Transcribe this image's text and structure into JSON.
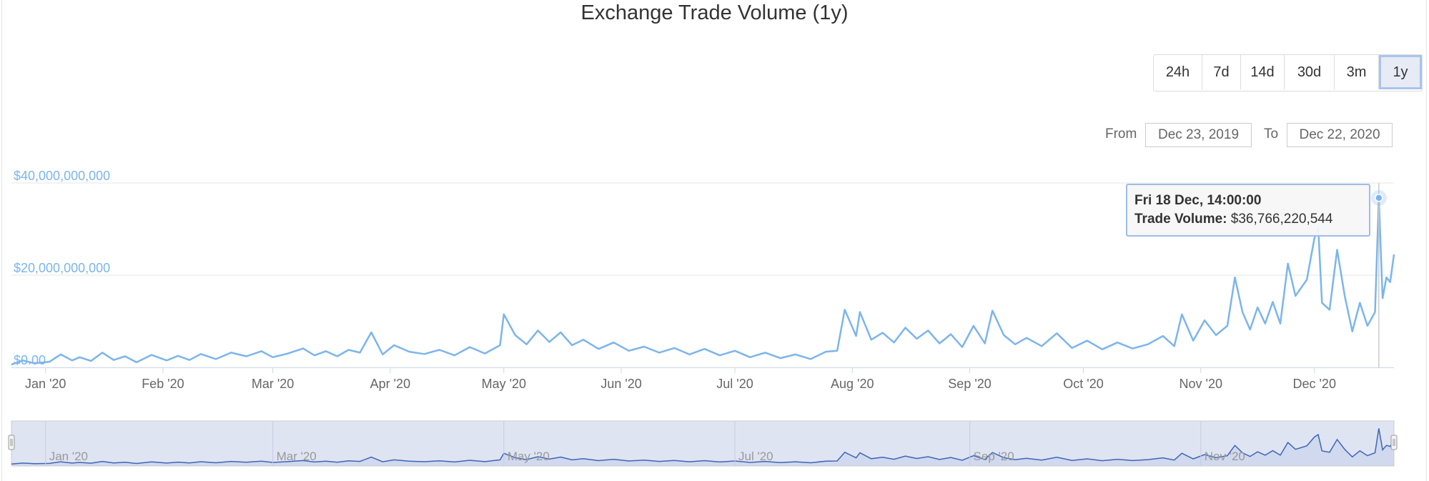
{
  "chart_data": {
    "type": "line",
    "title": "Exchange Trade Volume (1y)",
    "series": [
      {
        "values": []
      }
    ],
    "x_start": "2019-12-23",
    "x_end": "2020-12-22",
    "x_ticks": [
      "Jan '20",
      "Feb '20",
      "Mar '20",
      "Apr '20",
      "May '20",
      "Jun '20",
      "Jul '20",
      "Aug '20",
      "Sep '20",
      "Oct '20",
      "Nov '20",
      "Dec '20"
    ],
    "y_ticks": [
      "$0.00",
      "$20,000,000,000",
      "$40,000,000,000"
    ],
    "ylim": [
      0,
      40000000000
    ],
    "navigator_labels": [
      "Jan '20",
      "Mar '20",
      "May '20",
      "Jul '20",
      "Sep '20",
      "Nov '20"
    ],
    "points": [
      [
        "2019-12-23",
        0.6
      ],
      [
        "2019-12-26",
        1.5
      ],
      [
        "2019-12-29",
        0.9
      ],
      [
        "2020-01-02",
        1.2
      ],
      [
        "2020-01-05",
        2.8
      ],
      [
        "2020-01-08",
        1.5
      ],
      [
        "2020-01-10",
        2.2
      ],
      [
        "2020-01-13",
        1.4
      ],
      [
        "2020-01-16",
        3.2
      ],
      [
        "2020-01-19",
        1.6
      ],
      [
        "2020-01-22",
        2.4
      ],
      [
        "2020-01-25",
        1.1
      ],
      [
        "2020-01-29",
        2.7
      ],
      [
        "2020-02-02",
        1.5
      ],
      [
        "2020-02-05",
        2.5
      ],
      [
        "2020-02-08",
        1.6
      ],
      [
        "2020-02-11",
        2.9
      ],
      [
        "2020-02-15",
        1.8
      ],
      [
        "2020-02-19",
        3.2
      ],
      [
        "2020-02-23",
        2.4
      ],
      [
        "2020-02-27",
        3.5
      ],
      [
        "2020-03-01",
        2.2
      ],
      [
        "2020-03-05",
        3.0
      ],
      [
        "2020-03-09",
        4.1
      ],
      [
        "2020-03-12",
        2.6
      ],
      [
        "2020-03-15",
        3.5
      ],
      [
        "2020-03-18",
        2.4
      ],
      [
        "2020-03-21",
        3.8
      ],
      [
        "2020-03-24",
        3.2
      ],
      [
        "2020-03-27",
        7.6
      ],
      [
        "2020-03-30",
        2.8
      ],
      [
        "2020-04-02",
        4.8
      ],
      [
        "2020-04-06",
        3.4
      ],
      [
        "2020-04-10",
        2.9
      ],
      [
        "2020-04-14",
        3.8
      ],
      [
        "2020-04-18",
        2.6
      ],
      [
        "2020-04-22",
        4.4
      ],
      [
        "2020-04-26",
        3.0
      ],
      [
        "2020-04-30",
        4.8
      ],
      [
        "2020-05-01",
        11.5
      ],
      [
        "2020-05-04",
        7.0
      ],
      [
        "2020-05-07",
        5.0
      ],
      [
        "2020-05-10",
        8.0
      ],
      [
        "2020-05-13",
        5.5
      ],
      [
        "2020-05-16",
        7.6
      ],
      [
        "2020-05-19",
        4.8
      ],
      [
        "2020-05-22",
        6.0
      ],
      [
        "2020-05-26",
        4.0
      ],
      [
        "2020-05-30",
        5.4
      ],
      [
        "2020-06-03",
        3.6
      ],
      [
        "2020-06-07",
        4.5
      ],
      [
        "2020-06-11",
        3.2
      ],
      [
        "2020-06-15",
        4.2
      ],
      [
        "2020-06-19",
        2.8
      ],
      [
        "2020-06-23",
        4.0
      ],
      [
        "2020-06-27",
        2.6
      ],
      [
        "2020-07-01",
        3.6
      ],
      [
        "2020-07-05",
        2.2
      ],
      [
        "2020-07-09",
        3.2
      ],
      [
        "2020-07-13",
        2.0
      ],
      [
        "2020-07-17",
        2.8
      ],
      [
        "2020-07-21",
        1.8
      ],
      [
        "2020-07-25",
        3.4
      ],
      [
        "2020-07-28",
        3.6
      ],
      [
        "2020-07-30",
        12.5
      ],
      [
        "2020-08-02",
        6.8
      ],
      [
        "2020-08-03",
        12.0
      ],
      [
        "2020-08-06",
        6.0
      ],
      [
        "2020-08-09",
        7.5
      ],
      [
        "2020-08-12",
        5.4
      ],
      [
        "2020-08-15",
        8.6
      ],
      [
        "2020-08-18",
        6.2
      ],
      [
        "2020-08-21",
        8.0
      ],
      [
        "2020-08-24",
        5.2
      ],
      [
        "2020-08-27",
        7.2
      ],
      [
        "2020-08-30",
        4.4
      ],
      [
        "2020-09-02",
        9.0
      ],
      [
        "2020-09-05",
        5.2
      ],
      [
        "2020-09-07",
        12.3
      ],
      [
        "2020-09-10",
        7.0
      ],
      [
        "2020-09-13",
        5.0
      ],
      [
        "2020-09-16",
        6.4
      ],
      [
        "2020-09-20",
        4.6
      ],
      [
        "2020-09-24",
        7.4
      ],
      [
        "2020-09-28",
        4.2
      ],
      [
        "2020-10-02",
        5.8
      ],
      [
        "2020-10-06",
        3.9
      ],
      [
        "2020-10-10",
        5.4
      ],
      [
        "2020-10-14",
        4.1
      ],
      [
        "2020-10-18",
        5.0
      ],
      [
        "2020-10-22",
        6.8
      ],
      [
        "2020-10-25",
        4.6
      ],
      [
        "2020-10-27",
        11.5
      ],
      [
        "2020-10-30",
        5.8
      ],
      [
        "2020-11-02",
        10.2
      ],
      [
        "2020-11-05",
        7.0
      ],
      [
        "2020-11-08",
        9.0
      ],
      [
        "2020-11-10",
        19.5
      ],
      [
        "2020-11-12",
        12.0
      ],
      [
        "2020-11-14",
        8.2
      ],
      [
        "2020-11-16",
        13.0
      ],
      [
        "2020-11-18",
        9.5
      ],
      [
        "2020-11-20",
        14.2
      ],
      [
        "2020-11-22",
        9.5
      ],
      [
        "2020-11-24",
        22.5
      ],
      [
        "2020-11-26",
        15.5
      ],
      [
        "2020-11-29",
        19.0
      ],
      [
        "2020-12-01",
        28.0
      ],
      [
        "2020-12-02",
        30.5
      ],
      [
        "2020-12-03",
        14.0
      ],
      [
        "2020-12-05",
        12.5
      ],
      [
        "2020-12-07",
        25.5
      ],
      [
        "2020-12-09",
        15.5
      ],
      [
        "2020-12-11",
        7.8
      ],
      [
        "2020-12-13",
        14.0
      ],
      [
        "2020-12-15",
        9.0
      ],
      [
        "2020-12-17",
        12.0
      ],
      [
        "2020-12-18",
        36.766220544
      ],
      [
        "2020-12-19",
        15.0
      ],
      [
        "2020-12-20",
        19.5
      ],
      [
        "2020-12-21",
        18.5
      ],
      [
        "2020-12-22",
        24.5
      ]
    ],
    "y_unit_scale": 1000000000,
    "highlight": {
      "date_label": "Fri 18 Dec, 14:00:00",
      "series_label": "Trade Volume:",
      "value_label": "$36,766,220,544"
    },
    "grid": true,
    "line_color": "#7cb5ec"
  },
  "range_selector": {
    "buttons": [
      "24h",
      "7d",
      "14d",
      "30d",
      "3m",
      "1y"
    ],
    "active": "1y"
  },
  "date_range": {
    "from_label": "From",
    "from_value": "Dec 23, 2019",
    "to_label": "To",
    "to_value": "Dec 22, 2020"
  }
}
